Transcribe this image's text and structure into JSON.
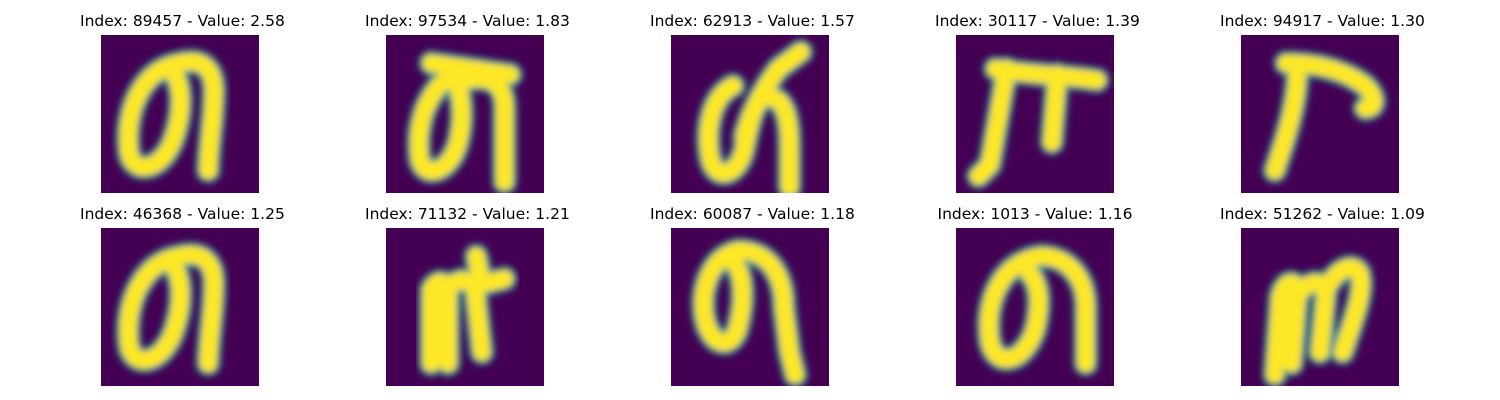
{
  "figure": {
    "colormap": "viridis",
    "background_color": "#440154",
    "panels": [
      {
        "title": "Index: 89457 - Value: 2.58",
        "glyph": "loop-n"
      },
      {
        "title": "Index: 97534 - Value: 1.83",
        "glyph": "loop-n-bar"
      },
      {
        "title": "Index: 62913 - Value: 1.57",
        "glyph": "loop-n-tail"
      },
      {
        "title": "Index: 30117 - Value: 1.39",
        "glyph": "pi-shape"
      },
      {
        "title": "Index: 94917 - Value: 1.30",
        "glyph": "hook-t"
      },
      {
        "title": "Index: 46368 - Value: 1.25",
        "glyph": "loop-n"
      },
      {
        "title": "Index: 71132 - Value: 1.21",
        "glyph": "m-shape"
      },
      {
        "title": "Index: 60087 - Value: 1.18",
        "glyph": "loop-q"
      },
      {
        "title": "Index: 1013 - Value: 1.16",
        "glyph": "loop-n-wide"
      },
      {
        "title": "Index: 51262 - Value: 1.09",
        "glyph": "m-slant"
      }
    ]
  }
}
